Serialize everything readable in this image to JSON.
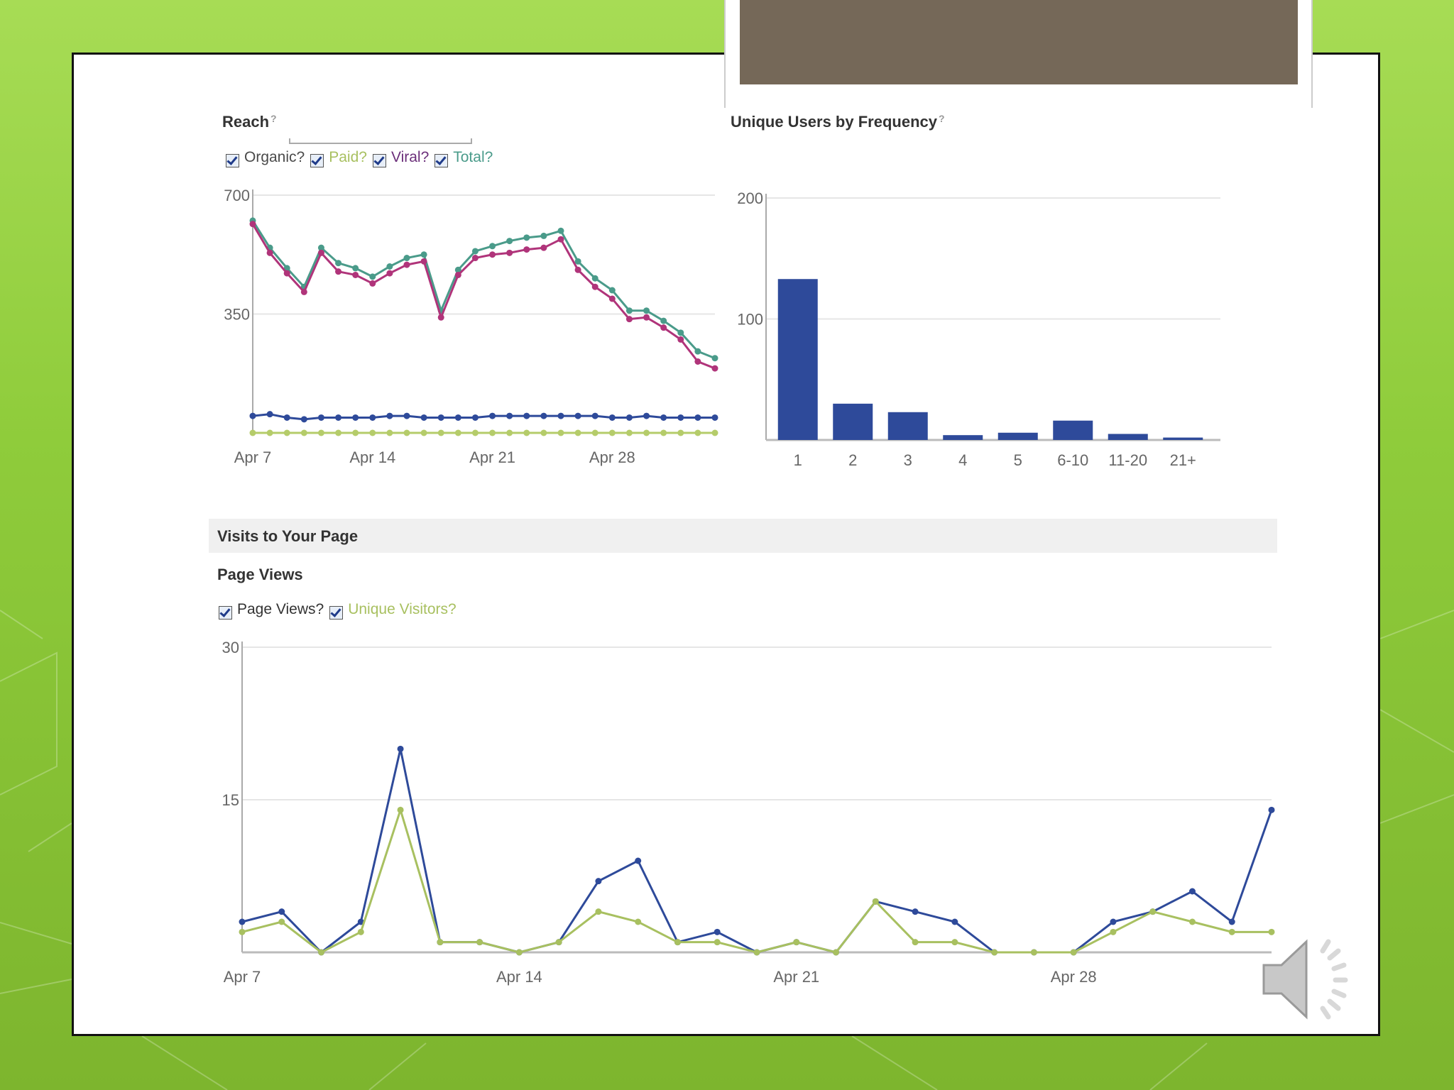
{
  "reach": {
    "title": "Reach",
    "help": "?",
    "legend": [
      {
        "label": "Organic?",
        "color": "#4a4a4a"
      },
      {
        "label": "Paid?",
        "color": "#a8c060"
      },
      {
        "label": "Viral?",
        "color": "#6b2f7a"
      },
      {
        "label": "Total?",
        "color": "#4a9b8a"
      }
    ]
  },
  "frequency": {
    "title": "Unique Users by Frequency",
    "help": "?"
  },
  "visits": {
    "section_title": "Visits to Your Page",
    "title": "Page Views",
    "legend": [
      {
        "label": "Page Views?",
        "color": "#333333"
      },
      {
        "label": "Unique Visitors?",
        "color": "#a8c060"
      }
    ]
  },
  "chart_data": [
    {
      "type": "line",
      "title": "Reach",
      "ylim": [
        0,
        700
      ],
      "yticks": [
        700,
        350
      ],
      "xticks": [
        {
          "i": 0,
          "label": "Apr 7"
        },
        {
          "i": 7,
          "label": "Apr 14"
        },
        {
          "i": 14,
          "label": "Apr 21"
        },
        {
          "i": 21,
          "label": "Apr 28"
        }
      ],
      "x_count": 28,
      "series": [
        {
          "name": "Total",
          "color": "#4a9b8a",
          "values": [
            625,
            545,
            485,
            430,
            545,
            500,
            485,
            460,
            490,
            515,
            525,
            360,
            480,
            535,
            550,
            565,
            575,
            580,
            595,
            505,
            455,
            420,
            360,
            360,
            330,
            295,
            240,
            220
          ]
        },
        {
          "name": "Viral",
          "color": "#b0347a",
          "values": [
            615,
            530,
            470,
            415,
            530,
            475,
            465,
            440,
            470,
            495,
            505,
            340,
            465,
            515,
            525,
            530,
            540,
            545,
            570,
            480,
            430,
            395,
            335,
            340,
            310,
            275,
            210,
            190
          ]
        },
        {
          "name": "Organic",
          "color": "#2e4a9a",
          "values": [
            50,
            55,
            45,
            40,
            45,
            45,
            45,
            45,
            50,
            50,
            45,
            45,
            45,
            45,
            50,
            50,
            50,
            50,
            50,
            50,
            50,
            45,
            45,
            50,
            45,
            45,
            45,
            45
          ]
        },
        {
          "name": "Paid",
          "color": "#b5cc6a",
          "values": [
            0,
            0,
            0,
            0,
            0,
            0,
            0,
            0,
            0,
            0,
            0,
            0,
            0,
            0,
            0,
            0,
            0,
            0,
            0,
            0,
            0,
            0,
            0,
            0,
            0,
            0,
            0,
            0
          ]
        }
      ]
    },
    {
      "type": "bar",
      "title": "Unique Users by Frequency",
      "categories": [
        "1",
        "2",
        "3",
        "4",
        "5",
        "6-10",
        "11-20",
        "21+"
      ],
      "values": [
        133,
        30,
        23,
        4,
        6,
        16,
        5,
        2
      ],
      "ylim": [
        0,
        200
      ],
      "yticks": [
        200,
        100
      ],
      "color": "#2e4a9a"
    },
    {
      "type": "line",
      "title": "Page Views",
      "ylim": [
        0,
        30
      ],
      "yticks": [
        30,
        15
      ],
      "xticks": [
        {
          "i": 0,
          "label": "Apr 7"
        },
        {
          "i": 7,
          "label": "Apr 14"
        },
        {
          "i": 14,
          "label": "Apr 21"
        },
        {
          "i": 21,
          "label": "Apr 28"
        }
      ],
      "x_count": 27,
      "series": [
        {
          "name": "Page Views",
          "color": "#2e4a9a",
          "values": [
            3,
            4,
            0,
            3,
            20,
            1,
            1,
            0,
            1,
            7,
            9,
            1,
            2,
            0,
            1,
            0,
            5,
            4,
            3,
            0,
            0,
            0,
            3,
            4,
            6,
            3,
            14
          ]
        },
        {
          "name": "Unique Visitors",
          "color": "#a8c060",
          "values": [
            2,
            3,
            0,
            2,
            14,
            1,
            1,
            0,
            1,
            4,
            3,
            1,
            1,
            0,
            1,
            0,
            5,
            1,
            1,
            0,
            0,
            0,
            2,
            4,
            3,
            2,
            2
          ]
        }
      ]
    }
  ]
}
